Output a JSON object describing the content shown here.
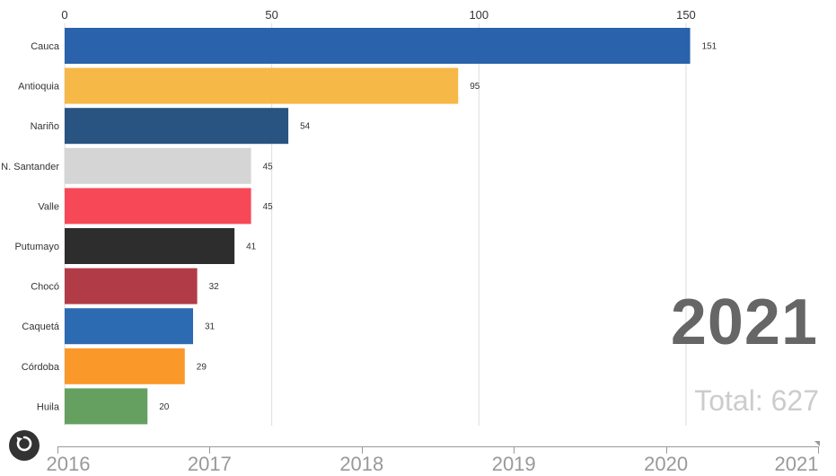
{
  "chart_data": {
    "type": "bar",
    "orientation": "horizontal",
    "categories": [
      "Cauca",
      "Antioquia",
      "Nariño",
      "N. Santander",
      "Valle",
      "Putumayo",
      "Chocó",
      "Caquetá",
      "Córdoba",
      "Huila"
    ],
    "values": [
      151,
      95,
      54,
      45,
      45,
      41,
      32,
      31,
      29,
      20
    ],
    "value_labels": [
      "151",
      "95",
      "54",
      "45",
      "45",
      "41",
      "32",
      "31",
      "29",
      "20"
    ],
    "colors": [
      "#1f5aa6",
      "#f5b43c",
      "#1d4a7a",
      "#d3d3d3",
      "#f73e4f",
      "#222222",
      "#ad323e",
      "#2162ae",
      "#fa931f",
      "#5d9b59"
    ],
    "xticks": [
      0,
      50,
      100,
      150
    ],
    "xtick_labels": [
      "0",
      "50",
      "100",
      "150"
    ],
    "xlim": [
      0,
      151
    ],
    "grid": true,
    "xaxis_position": "top"
  },
  "year_display": "2021",
  "total_display": "Total: 627",
  "timeline": {
    "labels": [
      "2016",
      "2017",
      "2018",
      "2019",
      "2020",
      "2021"
    ],
    "current": "2021"
  },
  "icons": {
    "replay": "replay-icon"
  }
}
